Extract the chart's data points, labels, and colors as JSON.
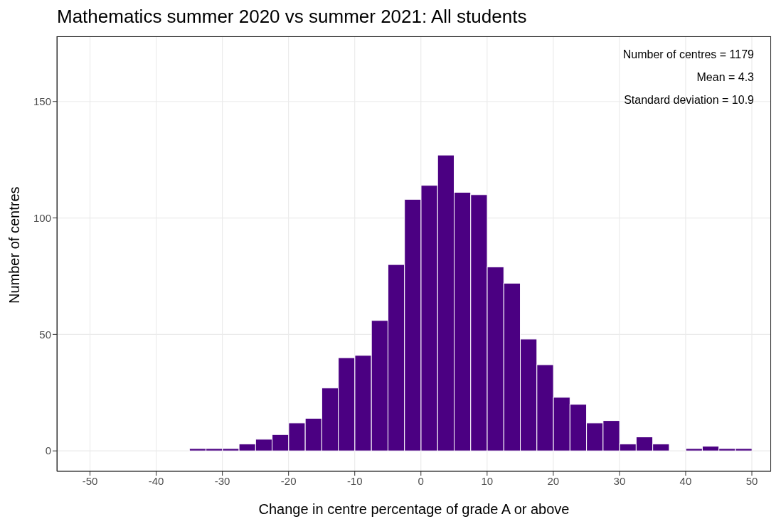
{
  "chart_data": {
    "type": "histogram",
    "title": "Mathematics summer 2020 vs summer 2021: All students",
    "xlabel": "Change in centre percentage of grade A or above",
    "ylabel": "Number of centres",
    "annotations": [
      "Number of centres = 1179",
      "Mean = 4.3",
      "Standard deviation = 10.9"
    ],
    "bins": [
      -35,
      -32.5,
      -30,
      -27.5,
      -25,
      -22.5,
      -20,
      -17.5,
      -15,
      -12.5,
      -10,
      -7.5,
      -5,
      -2.5,
      0,
      2.5,
      5,
      7.5,
      10,
      12.5,
      15,
      17.5,
      20,
      22.5,
      25,
      27.5,
      30,
      32.5,
      35,
      37.5,
      40,
      42.5,
      45,
      47.5,
      50
    ],
    "values": [
      1,
      1,
      1,
      3,
      5,
      7,
      12,
      14,
      27,
      40,
      41,
      56,
      80,
      108,
      114,
      127,
      111,
      110,
      79,
      72,
      48,
      37,
      23,
      20,
      12,
      13,
      3,
      6,
      3,
      0,
      1,
      2,
      1,
      1
    ],
    "color": "#4b0082",
    "xlim": [
      -55,
      52.9
    ],
    "xticks": [
      -50,
      -40,
      -30,
      -20,
      -10,
      0,
      10,
      20,
      30,
      40,
      50
    ],
    "ylim": [
      -8.8,
      178
    ],
    "yticks": [
      0,
      50,
      100,
      150
    ],
    "grid": true
  }
}
